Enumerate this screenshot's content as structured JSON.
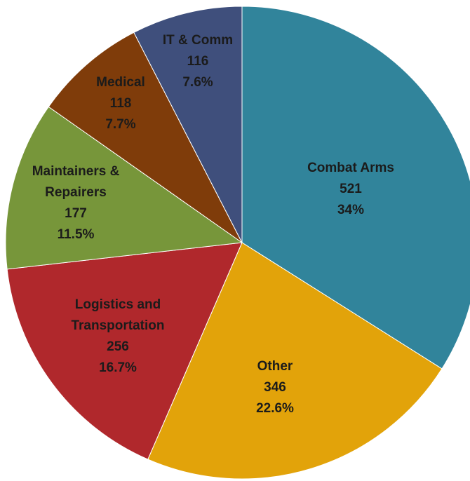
{
  "chart_data": {
    "type": "pie",
    "categories": [
      "Combat Arms",
      "Other",
      "Logistics and Transportation",
      "Maintainers & Repairers",
      "Medical",
      "IT & Comm"
    ],
    "values": [
      521,
      346,
      256,
      177,
      118,
      116
    ],
    "percent_labels": [
      "34%",
      "22.6%",
      "16.7%",
      "11.5%",
      "7.7%",
      "7.6%"
    ],
    "colors": [
      "#31849b",
      "#e2a30a",
      "#b0282c",
      "#77963a",
      "#7f3c0a",
      "#3f4f7c"
    ]
  }
}
